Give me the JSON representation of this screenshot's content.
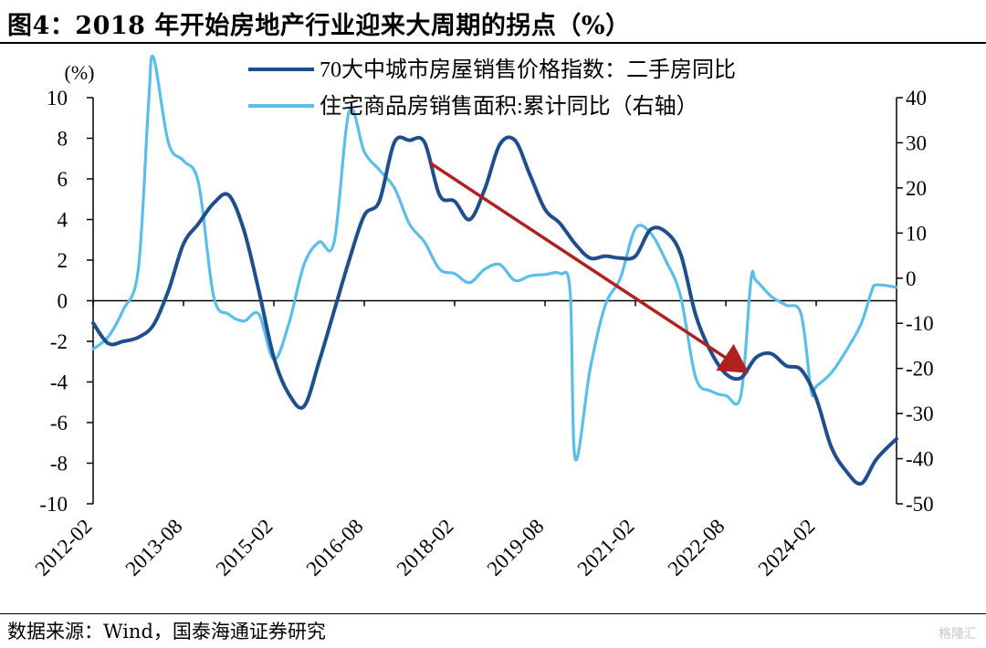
{
  "title": "图4：2018 年开始房地产行业迎来大周期的拐点（%）",
  "source": "数据来源：Wind，国泰海通证券研究",
  "watermark": "格隆汇",
  "chart_data": {
    "type": "line",
    "left_unit_label": "(%)",
    "y_left": {
      "min": -10,
      "max": 10,
      "ticks": [
        -10,
        -8,
        -6,
        -4,
        -2,
        0,
        2,
        4,
        6,
        8,
        10
      ]
    },
    "y_right": {
      "min": -50,
      "max": 40,
      "ticks": [
        -50,
        -40,
        -30,
        -20,
        -10,
        0,
        10,
        20,
        30,
        40
      ]
    },
    "x_ticks": [
      "2012-02",
      "2013-08",
      "2015-02",
      "2016-08",
      "2018-02",
      "2019-08",
      "2021-02",
      "2022-08",
      "2024-02"
    ],
    "x_range": [
      "2012-02",
      "2025-06"
    ],
    "legend": [
      "70大中城市房屋销售价格指数：二手房同比",
      "住宅商品房销售面积:累计同比（右轴）"
    ],
    "colors": {
      "series1": "#1f4e8c",
      "series2": "#5bbde9",
      "arrow": "#b21f1f"
    },
    "series": [
      {
        "name": "70大中城市房屋销售价格指数：二手房同比",
        "axis": "left",
        "x": [
          "2012-02",
          "2012-05",
          "2012-08",
          "2012-11",
          "2013-02",
          "2013-05",
          "2013-08",
          "2013-11",
          "2014-02",
          "2014-05",
          "2014-08",
          "2014-11",
          "2015-02",
          "2015-05",
          "2015-08",
          "2015-11",
          "2016-02",
          "2016-05",
          "2016-08",
          "2016-11",
          "2017-02",
          "2017-05",
          "2017-08",
          "2017-11",
          "2018-02",
          "2018-05",
          "2018-08",
          "2018-11",
          "2019-02",
          "2019-05",
          "2019-08",
          "2019-11",
          "2020-02",
          "2020-05",
          "2020-08",
          "2020-11",
          "2021-02",
          "2021-05",
          "2021-08",
          "2021-11",
          "2022-02",
          "2022-05",
          "2022-08",
          "2022-11",
          "2023-02",
          "2023-05",
          "2023-08",
          "2023-11",
          "2024-02",
          "2024-05",
          "2024-08",
          "2024-11",
          "2025-02",
          "2025-06"
        ],
        "values": [
          -1.1,
          -2.1,
          -2.0,
          -1.8,
          -1.2,
          0.5,
          2.8,
          3.8,
          4.8,
          5.2,
          3.5,
          0.5,
          -2.8,
          -4.6,
          -5.2,
          -3.0,
          -0.5,
          2.0,
          4.2,
          4.9,
          7.8,
          7.9,
          7.8,
          5.2,
          4.9,
          4.0,
          5.5,
          7.7,
          7.9,
          6.2,
          4.5,
          3.8,
          2.8,
          2.1,
          2.2,
          2.1,
          2.2,
          3.5,
          3.4,
          2.3,
          -0.7,
          -2.5,
          -3.6,
          -3.8,
          -2.8,
          -2.6,
          -3.2,
          -3.4,
          -4.8,
          -7.2,
          -8.4,
          -9.0,
          -7.8,
          -6.8
        ]
      },
      {
        "name": "住宅商品房销售面积:累计同比（右轴）",
        "axis": "right",
        "x": [
          "2012-02",
          "2012-05",
          "2012-08",
          "2012-11",
          "2013-01",
          "2013-02",
          "2013-05",
          "2013-08",
          "2013-11",
          "2014-02",
          "2014-05",
          "2014-08",
          "2014-11",
          "2015-02",
          "2015-05",
          "2015-08",
          "2015-11",
          "2016-02",
          "2016-05",
          "2016-08",
          "2016-11",
          "2017-02",
          "2017-05",
          "2017-08",
          "2017-11",
          "2018-02",
          "2018-05",
          "2018-08",
          "2018-11",
          "2019-02",
          "2019-05",
          "2019-08",
          "2019-11",
          "2020-01",
          "2020-02",
          "2020-05",
          "2020-08",
          "2020-11",
          "2021-02",
          "2021-05",
          "2021-08",
          "2021-11",
          "2022-02",
          "2022-05",
          "2022-08",
          "2022-11",
          "2023-01",
          "2023-02",
          "2023-05",
          "2023-08",
          "2023-11",
          "2024-01",
          "2024-02",
          "2024-05",
          "2024-08",
          "2024-11",
          "2025-01",
          "2025-02",
          "2025-06"
        ],
        "values": [
          -15.7,
          -13.0,
          -7.0,
          2.0,
          38.0,
          49.0,
          30.0,
          26.0,
          21.0,
          -4.0,
          -8.0,
          -9.5,
          -8.0,
          -18.0,
          -10.0,
          3.0,
          8.0,
          8.0,
          37.0,
          28.0,
          24.0,
          20.0,
          12.0,
          8.0,
          2.0,
          1.0,
          -1.0,
          2.0,
          3.0,
          -0.5,
          0.5,
          0.8,
          1.0,
          -3.0,
          -40.0,
          -20.0,
          -6.0,
          0.0,
          11.0,
          10.0,
          4.0,
          -4.0,
          -22.0,
          -25.0,
          -26.0,
          -26.0,
          -0.5,
          -0.5,
          -4.0,
          -6.0,
          -8.0,
          -25.0,
          -24.0,
          -21.0,
          -16.0,
          -10.0,
          -3.0,
          -1.5,
          -2.0
        ]
      }
    ],
    "annotation": {
      "type": "arrow",
      "from": {
        "x": "2017-09",
        "y": 6.8
      },
      "to": {
        "x": "2022-11",
        "y": -3.3
      },
      "axis": "left"
    }
  }
}
